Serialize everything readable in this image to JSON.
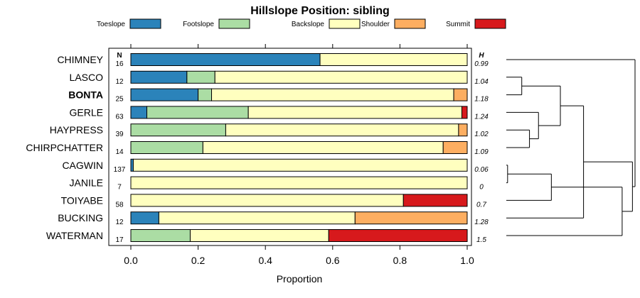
{
  "chart_data": {
    "type": "bar",
    "orientation": "horizontal",
    "stacked": true,
    "title": "Hillslope Position: sibling",
    "xlabel": "Proportion",
    "xlim": [
      0,
      1
    ],
    "x_ticks": [
      "0.0",
      "0.2",
      "0.4",
      "0.6",
      "0.8",
      "1.0"
    ],
    "x_tick_values": [
      0,
      0.2,
      0.4,
      0.6,
      0.8,
      1.0
    ],
    "n_header": "N",
    "h_header": "H",
    "legend_position": "top",
    "series": [
      {
        "name": "Toeslope",
        "color": "#2b83ba"
      },
      {
        "name": "Footslope",
        "color": "#abdda4"
      },
      {
        "name": "Backslope",
        "color": "#ffffbf"
      },
      {
        "name": "Shoulder",
        "color": "#fdae61"
      },
      {
        "name": "Summit",
        "color": "#d7191c"
      }
    ],
    "rows": [
      {
        "label": "CHIMNEY",
        "n": "16",
        "h": "0.99",
        "bold": false,
        "values": [
          0.5625,
          0,
          0.4375,
          0,
          0
        ]
      },
      {
        "label": "LASCO",
        "n": "12",
        "h": "1.04",
        "bold": false,
        "values": [
          0.1667,
          0.0833,
          0.75,
          0,
          0
        ]
      },
      {
        "label": "BONTA",
        "n": "25",
        "h": "1.18",
        "bold": true,
        "values": [
          0.2,
          0.04,
          0.72,
          0.04,
          0
        ]
      },
      {
        "label": "GERLE",
        "n": "63",
        "h": "1.24",
        "bold": false,
        "values": [
          0.0476,
          0.3016,
          0.6349,
          0,
          0.0159
        ]
      },
      {
        "label": "HAYPRESS",
        "n": "39",
        "h": "1.02",
        "bold": false,
        "values": [
          0,
          0.2821,
          0.6923,
          0.0256,
          0
        ]
      },
      {
        "label": "CHIRPCHATTER",
        "n": "14",
        "h": "1.09",
        "bold": false,
        "values": [
          0,
          0.2143,
          0.7143,
          0.0714,
          0
        ]
      },
      {
        "label": "CAGWIN",
        "n": "137",
        "h": "0.06",
        "bold": false,
        "values": [
          0.0073,
          0,
          0.9927,
          0,
          0
        ]
      },
      {
        "label": "JANILE",
        "n": "7",
        "h": "0",
        "bold": false,
        "values": [
          0,
          0,
          1.0,
          0,
          0
        ]
      },
      {
        "label": "TOIYABE",
        "n": "58",
        "h": "0.7",
        "bold": false,
        "values": [
          0,
          0,
          0.8103,
          0,
          0.1897
        ]
      },
      {
        "label": "BUCKING",
        "n": "12",
        "h": "1.28",
        "bold": false,
        "values": [
          0.0833,
          0,
          0.5833,
          0.3333,
          0
        ]
      },
      {
        "label": "WATERMAN",
        "n": "17",
        "h": "1.5",
        "bold": false,
        "values": [
          0,
          0.1765,
          0.4118,
          0,
          0.4118
        ]
      }
    ],
    "dendrogram": {
      "description_nodes": [
        {
          "id": "a",
          "children": [
            "LASCO",
            "BONTA"
          ],
          "height": 0.12
        },
        {
          "id": "b",
          "children": [
            "HAYPRESS",
            "CHIRPCHATTER"
          ],
          "height": 0.18
        },
        {
          "id": "c",
          "children": [
            "GERLE",
            "b"
          ],
          "height": 0.25
        },
        {
          "id": "d",
          "children": [
            "a",
            "c"
          ],
          "height": 0.42
        },
        {
          "id": "e",
          "children": [
            "CAGWIN",
            "JANILE"
          ],
          "height": 0.01
        },
        {
          "id": "f",
          "children": [
            "e",
            "TOIYABE"
          ],
          "height": 0.35
        },
        {
          "id": "g",
          "children": [
            "d",
            "BUCKING"
          ],
          "height": 0.6
        },
        {
          "id": "h",
          "children": [
            "f",
            "WATERMAN"
          ],
          "height": 0.9
        },
        {
          "id": "i",
          "children": [
            "g",
            "h"
          ],
          "height": 0.98
        },
        {
          "id": "root",
          "children": [
            "CHIMNEY",
            "i"
          ],
          "height": 1.0
        }
      ]
    }
  }
}
